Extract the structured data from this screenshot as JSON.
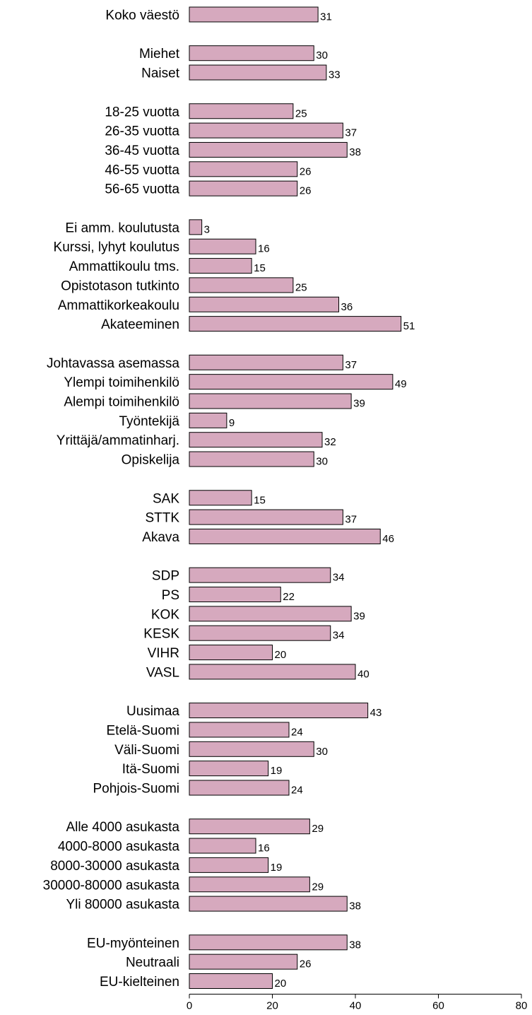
{
  "chart_data": {
    "type": "bar",
    "orientation": "horizontal",
    "bar_color": "#d6a9be",
    "bar_edge_color": "#000000",
    "xlim": [
      0,
      80
    ],
    "xticks": [
      0,
      20,
      40,
      60,
      80
    ],
    "grid": false,
    "title": "",
    "xlabel": "",
    "ylabel": "",
    "groups": [
      {
        "categories": [
          "Koko väestö"
        ],
        "values": [
          31
        ]
      },
      {
        "categories": [
          "Miehet",
          "Naiset"
        ],
        "values": [
          30,
          33
        ]
      },
      {
        "categories": [
          "18-25 vuotta",
          "26-35 vuotta",
          "36-45 vuotta",
          "46-55 vuotta",
          "56-65 vuotta"
        ],
        "values": [
          25,
          37,
          38,
          26,
          26
        ]
      },
      {
        "categories": [
          "Ei amm. koulutusta",
          "Kurssi, lyhyt koulutus",
          "Ammattikoulu tms.",
          "Opistotason tutkinto",
          "Ammattikorkeakoulu",
          "Akateeminen"
        ],
        "values": [
          3,
          16,
          15,
          25,
          36,
          51
        ]
      },
      {
        "categories": [
          "Johtavassa asemassa",
          "Ylempi toimihenkilö",
          "Alempi toimihenkilö",
          "Työntekijä",
          "Yrittäjä/ammatinharj.",
          "Opiskelija"
        ],
        "values": [
          37,
          49,
          39,
          9,
          32,
          30
        ]
      },
      {
        "categories": [
          "SAK",
          "STTK",
          "Akava"
        ],
        "values": [
          15,
          37,
          46
        ]
      },
      {
        "categories": [
          "SDP",
          "PS",
          "KOK",
          "KESK",
          "VIHR",
          "VASL"
        ],
        "values": [
          34,
          22,
          39,
          34,
          20,
          40
        ]
      },
      {
        "categories": [
          "Uusimaa",
          "Etelä-Suomi",
          "Väli-Suomi",
          "Itä-Suomi",
          "Pohjois-Suomi"
        ],
        "values": [
          43,
          24,
          30,
          19,
          24
        ]
      },
      {
        "categories": [
          "Alle 4000 asukasta",
          "4000-8000 asukasta",
          "8000-30000 asukasta",
          "30000-80000 asukasta",
          "Yli 80000 asukasta"
        ],
        "values": [
          29,
          16,
          19,
          29,
          38
        ]
      },
      {
        "categories": [
          "EU-myönteinen",
          "Neutraali",
          "EU-kielteinen"
        ],
        "values": [
          38,
          26,
          20
        ]
      }
    ]
  }
}
